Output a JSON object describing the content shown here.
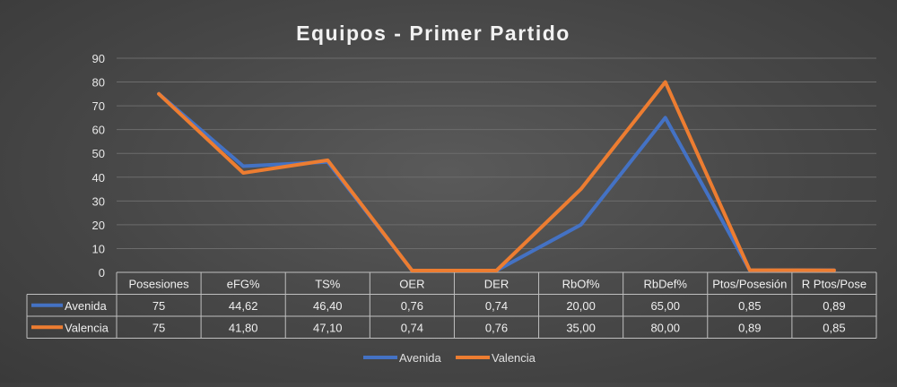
{
  "chart_data": {
    "type": "line",
    "title": "Equipos - Primer Partido",
    "categories": [
      "Posesiones",
      "eFG%",
      "TS%",
      "OER",
      "DER",
      "RbOf%",
      "RbDef%",
      "Ptos/Posesión",
      "R Ptos/Pose"
    ],
    "ylim": [
      0,
      90
    ],
    "yticks": [
      0,
      10,
      20,
      30,
      40,
      50,
      60,
      70,
      80,
      90
    ],
    "grid": true,
    "legend_position": "bottom",
    "series": [
      {
        "name": "Avenida",
        "color": "#4472c4",
        "values": [
          75,
          44.62,
          46.4,
          0.76,
          0.74,
          20.0,
          65.0,
          0.85,
          0.89
        ],
        "labels": [
          "75",
          "44,62",
          "46,40",
          "0,76",
          "0,74",
          "20,00",
          "65,00",
          "0,85",
          "0,89"
        ]
      },
      {
        "name": "Valencia",
        "color": "#ed7d31",
        "values": [
          75,
          41.8,
          47.1,
          0.74,
          0.76,
          35.0,
          80.0,
          0.89,
          0.85
        ],
        "labels": [
          "75",
          "41,80",
          "47,10",
          "0,74",
          "0,76",
          "35,00",
          "80,00",
          "0,89",
          "0,85"
        ]
      }
    ]
  }
}
